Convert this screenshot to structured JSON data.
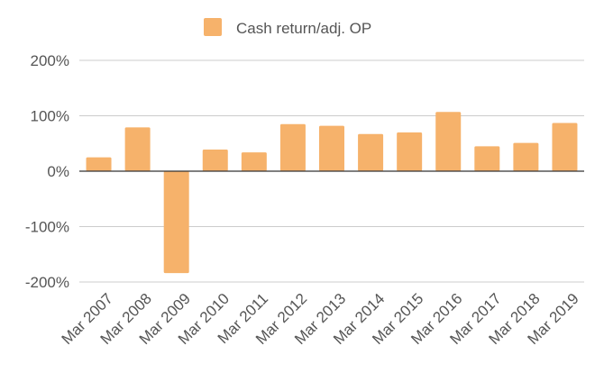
{
  "chart_data": {
    "type": "bar",
    "categories": [
      "Mar 2007",
      "Mar 2008",
      "Mar 2009",
      "Mar 2010",
      "Mar 2011",
      "Mar 2012",
      "Mar 2013",
      "Mar 2014",
      "Mar 2015",
      "Mar 2016",
      "Mar 2017",
      "Mar 2018",
      "Mar 2019"
    ],
    "series": [
      {
        "name": "Cash return/adj. OP",
        "color": "#f6b26b",
        "values": [
          25,
          79,
          -184,
          39,
          34,
          85,
          82,
          67,
          70,
          107,
          45,
          51,
          87
        ]
      }
    ],
    "title": "",
    "xlabel": "",
    "ylabel": "",
    "ylim": [
      -200,
      200
    ],
    "yticks": [
      -200,
      -100,
      0,
      100,
      200
    ],
    "ytick_labels": [
      "-200%",
      "-100%",
      "0%",
      "100%",
      "200%"
    ],
    "grid": true,
    "legend_position": "top"
  }
}
